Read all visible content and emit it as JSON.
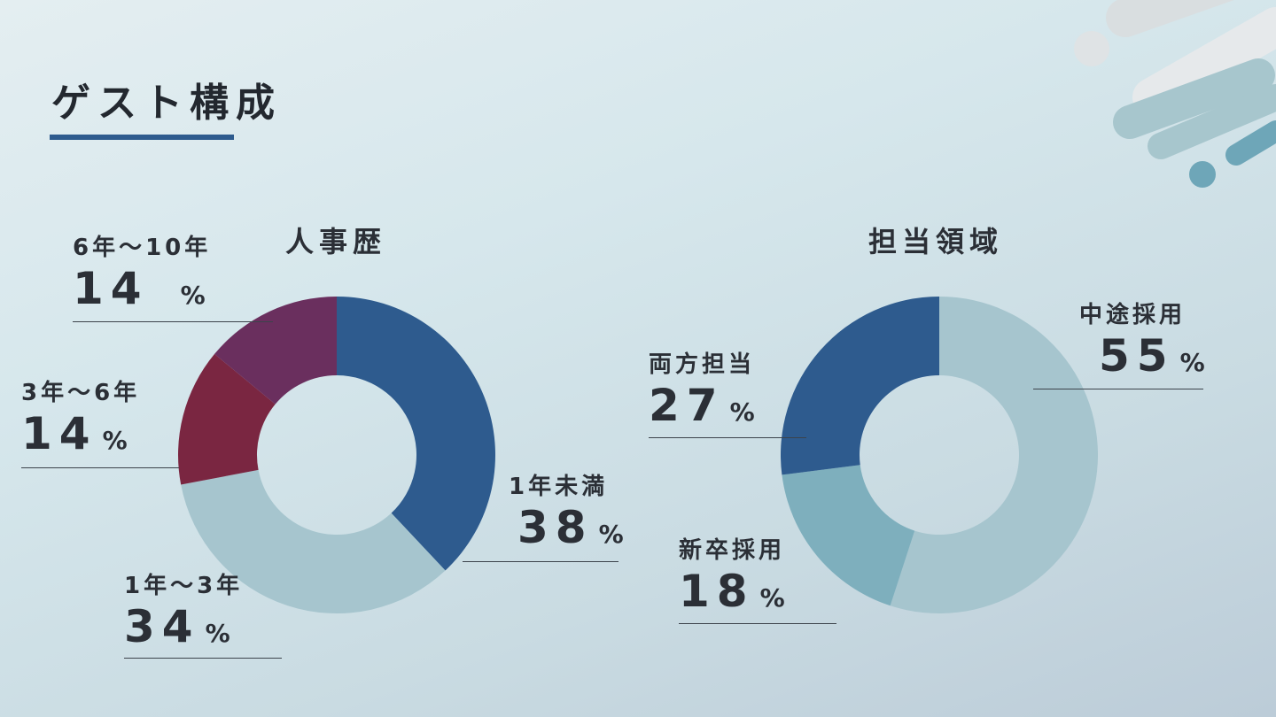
{
  "page": {
    "title": "ゲスト構成",
    "accent_color": "#2e5b8e"
  },
  "chart_data": [
    {
      "type": "pie",
      "title": "人事歴",
      "donut": true,
      "categories": [
        "1年未満",
        "1年～3年",
        "3年～6年",
        "6年～10年"
      ],
      "values": [
        38,
        34,
        14,
        14
      ],
      "unit": "%",
      "colors": [
        "#2e5b8e",
        "#a6c5ce",
        "#7a2641",
        "#6a2f5e"
      ]
    },
    {
      "type": "pie",
      "title": "担当領域",
      "donut": true,
      "categories": [
        "中途採用",
        "新卒採用",
        "両方担当"
      ],
      "values": [
        55,
        18,
        27
      ],
      "unit": "%",
      "colors": [
        "#a6c5ce",
        "#7eafbd",
        "#2e5b8e"
      ]
    }
  ]
}
